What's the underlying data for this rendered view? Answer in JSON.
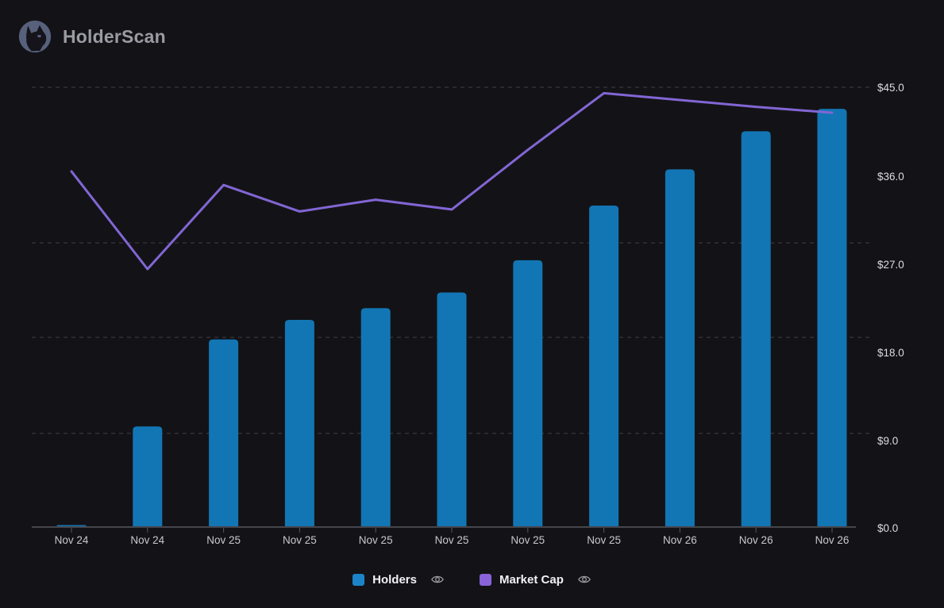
{
  "app": {
    "name": "HolderScan",
    "logo": "cat-logo-icon"
  },
  "colors": {
    "background": "#131317",
    "bar": "#1276b5",
    "line": "#8266d4",
    "legend_holders_swatch": "#1d83c8",
    "legend_marketcap_swatch": "#8a63d8",
    "grid": "#3e3e46",
    "axis": "#45454d",
    "tick": "#55555c",
    "x_label": "#c7c7cd",
    "y_label": "#dcdce1",
    "legend_text": "#f2f2f5",
    "brand_text": "#9b9ba3",
    "logo_circle": "#57617c",
    "logo_silhouette": "#14141a",
    "eye_icon": "#9a9aa2"
  },
  "chart_data": {
    "type": "bar+line",
    "categories": [
      "Nov 24",
      "Nov 24",
      "Nov 25",
      "Nov 25",
      "Nov 25",
      "Nov 25",
      "Nov 25",
      "Nov 25",
      "Nov 26",
      "Nov 26",
      "Nov 26"
    ],
    "series": [
      {
        "name": "Holders",
        "type": "bar",
        "color": "#1276b5",
        "values": [
          0.2,
          10.3,
          19.2,
          21.2,
          22.4,
          24.0,
          27.3,
          32.9,
          36.6,
          40.5,
          42.8
        ],
        "note": "Holders has no visible native axis; values are heights read against the right $ axis scale"
      },
      {
        "name": "Market Cap",
        "type": "line",
        "color": "#8266d4",
        "values": [
          36.4,
          26.4,
          35.0,
          32.3,
          33.5,
          32.5,
          38.6,
          44.4,
          43.7,
          43.0,
          42.4
        ]
      }
    ],
    "y_axis_right": {
      "tick_labels": [
        "$45.0",
        "$36.0",
        "$27.0",
        "$18.0",
        "$9.0",
        "$0.0"
      ],
      "range": [
        0,
        45
      ]
    },
    "grid": "dashed horizontal gridlines",
    "legend_position": "bottom-center"
  },
  "legend": {
    "holders_label": "Holders",
    "marketcap_label": "Market Cap"
  }
}
